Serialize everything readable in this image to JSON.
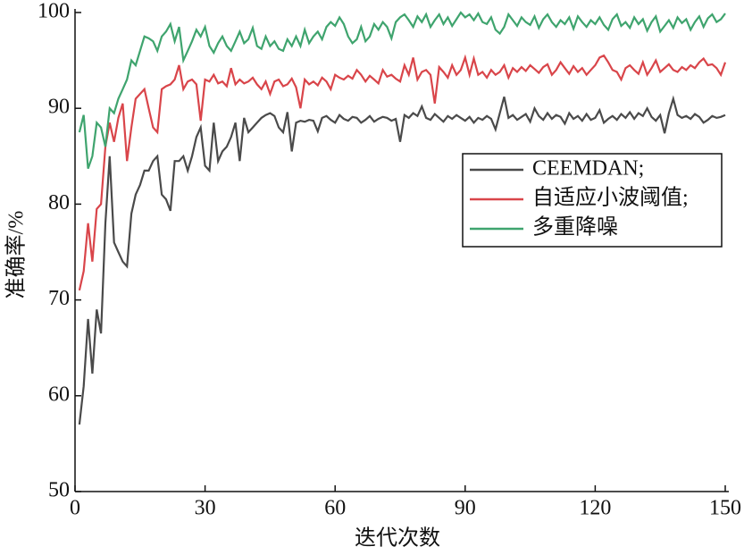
{
  "chart_data": {
    "type": "line",
    "xlabel": "迭代次数",
    "ylabel": "准确率/%",
    "xlim": [
      0,
      150
    ],
    "xticks": [
      0,
      30,
      60,
      90,
      120,
      150
    ],
    "ylim": [
      50,
      100
    ],
    "yticks": [
      50,
      60,
      70,
      80,
      90,
      100
    ],
    "legend": "center right",
    "x": [
      1,
      2,
      3,
      4,
      5,
      6,
      7,
      8,
      9,
      10,
      11,
      12,
      13,
      14,
      15,
      16,
      17,
      18,
      19,
      20,
      21,
      22,
      23,
      24,
      25,
      26,
      27,
      28,
      29,
      30,
      31,
      32,
      33,
      34,
      35,
      36,
      37,
      38,
      39,
      40,
      41,
      42,
      43,
      44,
      45,
      46,
      47,
      48,
      49,
      50,
      51,
      52,
      53,
      54,
      55,
      56,
      57,
      58,
      59,
      60,
      61,
      62,
      63,
      64,
      65,
      66,
      67,
      68,
      69,
      70,
      71,
      72,
      73,
      74,
      75,
      76,
      77,
      78,
      79,
      80,
      81,
      82,
      83,
      84,
      85,
      86,
      87,
      88,
      89,
      90,
      91,
      92,
      93,
      94,
      95,
      96,
      97,
      98,
      99,
      100,
      101,
      102,
      103,
      104,
      105,
      106,
      107,
      108,
      109,
      110,
      111,
      112,
      113,
      114,
      115,
      116,
      117,
      118,
      119,
      120,
      121,
      122,
      123,
      124,
      125,
      126,
      127,
      128,
      129,
      130,
      131,
      132,
      133,
      134,
      135,
      136,
      137,
      138,
      139,
      140,
      141,
      142,
      143,
      144,
      145,
      146,
      147,
      148,
      149,
      150
    ],
    "series": [
      {
        "name": "CEEMDAN;",
        "color": "#4a4a4a",
        "values": [
          57,
          61,
          68,
          62.3,
          69,
          66.5,
          78,
          85,
          76,
          75,
          74,
          73.5,
          79,
          81,
          82,
          83.5,
          83.5,
          84.5,
          85,
          81,
          80.5,
          79.3,
          84.5,
          84.5,
          85,
          83.5,
          85,
          87,
          88,
          84,
          83.5,
          88.5,
          84.5,
          85.5,
          86,
          87,
          88.5,
          84.5,
          89,
          87.5,
          88,
          88.5,
          89,
          89.3,
          89.5,
          89.2,
          88,
          87.5,
          89.6,
          85.5,
          88.5,
          88.7,
          88.6,
          88.8,
          88.7,
          87.6,
          89,
          89.2,
          88.8,
          88.5,
          89.3,
          88.9,
          88.7,
          89.1,
          89,
          88.5,
          88.8,
          89.2,
          88.6,
          88.9,
          89.1,
          89,
          88.7,
          88.9,
          86.5,
          89.3,
          89,
          89.5,
          89.2,
          90.2,
          89,
          88.8,
          89.4,
          89,
          88.6,
          89.2,
          88.9,
          89.3,
          89,
          88.7,
          89.1,
          88.5,
          89,
          88.8,
          89.2,
          88.9,
          87.8,
          89.5,
          91.2,
          89,
          89.3,
          88.8,
          89.1,
          89.4,
          88.6,
          90,
          89.2,
          88.8,
          89.5,
          88.9,
          89.3,
          89.1,
          88.4,
          89.5,
          88.9,
          89.2,
          88.7,
          89.4,
          88.8,
          89,
          89.8,
          88.5,
          88.9,
          89.2,
          88.8,
          89.4,
          89,
          89.6,
          88.9,
          89.5,
          89.2,
          90,
          89.1,
          88.7,
          89.3,
          87.4,
          89.5,
          91,
          89.3,
          89,
          89.2,
          88.9,
          89.4,
          89.1,
          88.5,
          88.8,
          89.2,
          89,
          89.1,
          89.3
        ]
      },
      {
        "name": "自适应小波阈值;",
        "color": "#d9454a",
        "values": [
          71,
          73,
          78,
          74,
          79.5,
          80,
          86,
          88.5,
          86.5,
          89,
          90.5,
          84.5,
          88,
          91,
          91.5,
          92,
          90,
          88,
          87.5,
          92,
          92.3,
          92.5,
          93,
          94.5,
          92,
          92.8,
          93,
          92.5,
          88.7,
          93,
          92.8,
          93.5,
          92.6,
          92.8,
          92.3,
          94.2,
          92.5,
          93,
          92.6,
          92.8,
          93.2,
          92.5,
          92,
          92.8,
          91.5,
          92.8,
          93,
          92.3,
          92.5,
          93.1,
          92.2,
          90,
          93,
          92.5,
          92.8,
          92.4,
          93.2,
          92.8,
          92,
          93.5,
          93.2,
          93,
          93.4,
          93.1,
          94,
          93.5,
          92.8,
          93.4,
          93,
          92.6,
          94,
          93.3,
          93.5,
          93.1,
          92.8,
          94.5,
          93.5,
          95.3,
          93,
          93.8,
          94,
          93.5,
          90.5,
          94.3,
          93.8,
          93.2,
          94.5,
          93.5,
          94,
          95.3,
          93.5,
          95.2,
          93.5,
          93.8,
          93.2,
          94,
          93.5,
          93.8,
          94.5,
          93.2,
          94.2,
          93.8,
          94.3,
          93.9,
          94.5,
          94.1,
          93.7,
          94.3,
          94.6,
          93.5,
          94,
          94.8,
          94.2,
          93.6,
          94.4,
          93.8,
          94.2,
          93.5,
          94,
          94.5,
          95.3,
          95.5,
          94.8,
          94,
          93.8,
          93,
          94.2,
          94.5,
          94,
          93.6,
          94.8,
          93.5,
          94.2,
          95,
          93.8,
          94.2,
          94.6,
          94,
          93.8,
          94.3,
          94,
          94.5,
          94.2,
          94.8,
          95.2,
          94.5,
          94.6,
          94.2,
          93.5,
          94.8
        ]
      },
      {
        "name": "多重降噪",
        "color": "#3fa46e",
        "values": [
          87.5,
          89.3,
          83.7,
          85,
          88.5,
          88,
          86,
          90,
          89.5,
          91,
          92,
          93,
          95,
          94.5,
          96,
          97.5,
          97.3,
          97,
          96,
          97.5,
          98,
          98.8,
          97,
          98.5,
          95,
          96,
          97,
          98.2,
          97.5,
          98.5,
          96.5,
          95.8,
          96.8,
          97.5,
          96.5,
          96,
          97,
          98,
          96.8,
          97.2,
          98.4,
          96.5,
          96.2,
          97.5,
          96.5,
          97,
          96.2,
          96,
          97.2,
          96.5,
          97.5,
          96.5,
          98.2,
          96.8,
          97.5,
          98,
          97.2,
          98.5,
          99,
          98.6,
          99.5,
          98.8,
          97.5,
          96.8,
          97.2,
          98.5,
          97,
          97.5,
          98.8,
          98.2,
          99,
          98.5,
          97.3,
          99,
          99.5,
          99.8,
          99.2,
          98.5,
          99.6,
          99,
          99.8,
          98.5,
          99.2,
          99.8,
          98.8,
          99.5,
          98.6,
          99.3,
          100,
          99.5,
          99.8,
          99.2,
          99.9,
          99,
          98.8,
          99.5,
          98.2,
          97.8,
          98.5,
          99.8,
          99.2,
          98.6,
          99.5,
          99,
          98.7,
          99.6,
          98.4,
          99.3,
          99.8,
          99,
          98.5,
          99.2,
          98.8,
          99.5,
          98.3,
          99.6,
          99,
          98.5,
          99.2,
          98.8,
          99.5,
          98.7,
          98.2,
          99.3,
          99.8,
          98.6,
          99,
          98.4,
          99.5,
          98.8,
          99.3,
          98.1,
          99,
          99.6,
          98,
          98.6,
          99.2,
          98.4,
          99.5,
          98.9,
          99.3,
          98.2,
          99,
          99.6,
          98.5,
          99.4,
          99.8,
          99,
          99.3,
          99.9
        ]
      }
    ]
  }
}
